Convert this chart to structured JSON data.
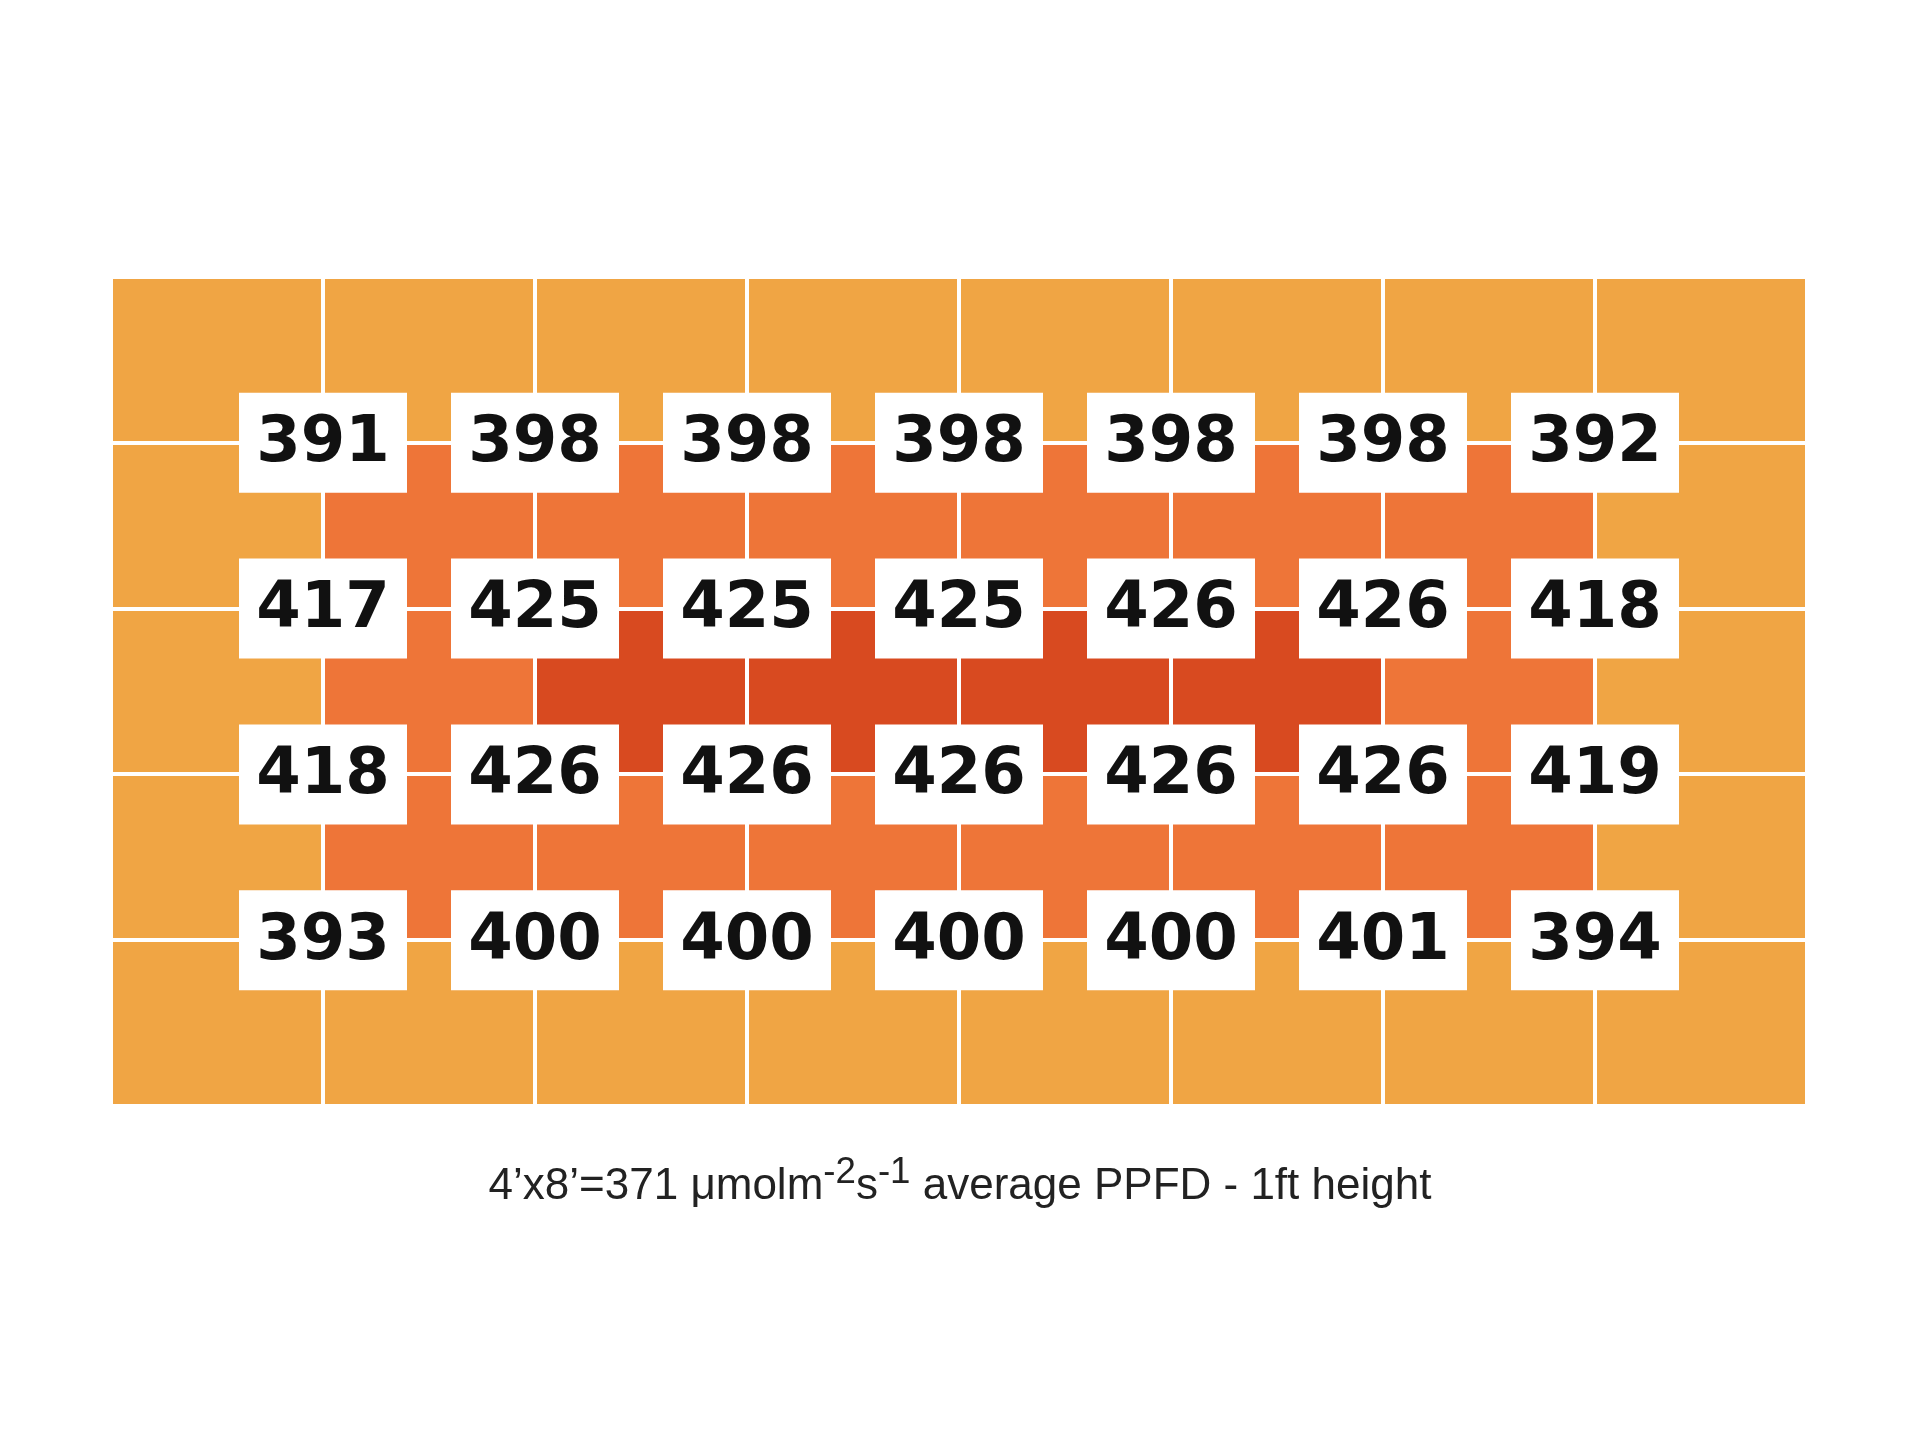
{
  "chart_data": {
    "type": "heatmap",
    "categories": [
      null,
      null,
      null,
      null,
      null,
      null,
      null
    ],
    "y_categories": [
      null,
      null,
      null,
      null
    ],
    "cells": [
      [
        391,
        398,
        398,
        398,
        398,
        398,
        392
      ],
      [
        417,
        425,
        425,
        425,
        426,
        426,
        418
      ],
      [
        418,
        426,
        426,
        426,
        426,
        426,
        419
      ],
      [
        393,
        400,
        400,
        400,
        400,
        401,
        394
      ]
    ],
    "color": "#ffffff",
    "data_labels": true,
    "tick_labels": false,
    "annotations": [
      "4’x8’=371 μmolm$^{-2}$s$^{-1}$ average PPFD - 1ft height"
    ]
  }
}
